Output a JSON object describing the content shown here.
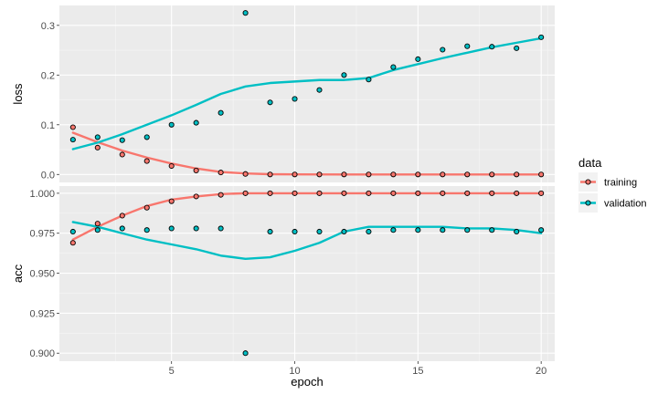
{
  "chart_data": {
    "type": "line",
    "x_label": "epoch",
    "x_ticks": [
      5,
      10,
      15,
      20
    ],
    "x_range": [
      0.45,
      20.55
    ],
    "legend": {
      "title": "data",
      "position": "right"
    },
    "series_colors": {
      "training": "#F8766D",
      "validation": "#00BFC4"
    },
    "panels": [
      {
        "name": "loss",
        "ylabel": "loss",
        "y_range": [
          -0.016,
          0.34
        ],
        "y_ticks": [
          0.0,
          0.1,
          0.2,
          0.3
        ],
        "y_tick_labels": [
          "0.0",
          "0.1",
          "0.2",
          "0.3"
        ],
        "points": {
          "training": [
            [
              1,
              0.095
            ],
            [
              2,
              0.054
            ],
            [
              3,
              0.04
            ],
            [
              4,
              0.027
            ],
            [
              5,
              0.017
            ],
            [
              6,
              0.008
            ],
            [
              7,
              0.004
            ],
            [
              8,
              0.001
            ],
            [
              9,
              0.0
            ],
            [
              10,
              0.0
            ],
            [
              11,
              0.0
            ],
            [
              12,
              0.0
            ],
            [
              13,
              0.0
            ],
            [
              14,
              0.0
            ],
            [
              15,
              0.0
            ],
            [
              16,
              0.0
            ],
            [
              17,
              0.0
            ],
            [
              18,
              0.0
            ],
            [
              19,
              0.0
            ],
            [
              20,
              0.0
            ]
          ],
          "validation": [
            [
              1,
              0.07
            ],
            [
              2,
              0.075
            ],
            [
              3,
              0.069
            ],
            [
              4,
              0.075
            ],
            [
              5,
              0.1
            ],
            [
              6,
              0.104
            ],
            [
              7,
              0.124
            ],
            [
              8,
              0.325
            ],
            [
              9,
              0.145
            ],
            [
              10,
              0.152
            ],
            [
              11,
              0.17
            ],
            [
              12,
              0.2
            ],
            [
              13,
              0.191
            ],
            [
              14,
              0.216
            ],
            [
              15,
              0.232
            ],
            [
              16,
              0.251
            ],
            [
              17,
              0.258
            ],
            [
              18,
              0.257
            ],
            [
              19,
              0.254
            ],
            [
              20,
              0.276
            ]
          ]
        },
        "smooth": {
          "training": [
            [
              1,
              0.084
            ],
            [
              2,
              0.065
            ],
            [
              3,
              0.048
            ],
            [
              4,
              0.034
            ],
            [
              5,
              0.022
            ],
            [
              6,
              0.012
            ],
            [
              7,
              0.005
            ],
            [
              8,
              0.002
            ],
            [
              9,
              0.0005
            ],
            [
              10,
              0.0001
            ],
            [
              12,
              0.0
            ],
            [
              14,
              0.0
            ],
            [
              16,
              0.0
            ],
            [
              18,
              0.0
            ],
            [
              20,
              0.0
            ]
          ],
          "validation": [
            [
              1,
              0.051
            ],
            [
              2,
              0.064
            ],
            [
              3,
              0.081
            ],
            [
              4,
              0.1
            ],
            [
              5,
              0.119
            ],
            [
              6,
              0.14
            ],
            [
              7,
              0.162
            ],
            [
              8,
              0.177
            ],
            [
              9,
              0.184
            ],
            [
              10,
              0.187
            ],
            [
              11,
              0.19
            ],
            [
              12,
              0.19
            ],
            [
              13,
              0.194
            ],
            [
              14,
              0.21
            ],
            [
              15,
              0.222
            ],
            [
              16,
              0.234
            ],
            [
              17,
              0.245
            ],
            [
              18,
              0.256
            ],
            [
              19,
              0.265
            ],
            [
              20,
              0.274
            ]
          ]
        }
      },
      {
        "name": "acc",
        "ylabel": "acc",
        "y_range": [
          0.895,
          1.0045
        ],
        "y_ticks": [
          0.9,
          0.925,
          0.95,
          0.975,
          1.0
        ],
        "y_tick_labels": [
          "0.900",
          "0.925",
          "0.950",
          "0.975",
          "1.000"
        ],
        "points": {
          "training": [
            [
              1,
              0.969
            ],
            [
              2,
              0.981
            ],
            [
              3,
              0.986
            ],
            [
              4,
              0.991
            ],
            [
              5,
              0.995
            ],
            [
              6,
              0.998
            ],
            [
              7,
              0.999
            ],
            [
              8,
              1.0
            ],
            [
              9,
              1.0
            ],
            [
              10,
              1.0
            ],
            [
              11,
              1.0
            ],
            [
              12,
              1.0
            ],
            [
              13,
              1.0
            ],
            [
              14,
              1.0
            ],
            [
              15,
              1.0
            ],
            [
              16,
              1.0
            ],
            [
              17,
              1.0
            ],
            [
              18,
              1.0
            ],
            [
              19,
              1.0
            ],
            [
              20,
              1.0
            ]
          ],
          "validation": [
            [
              1,
              0.976
            ],
            [
              2,
              0.977
            ],
            [
              3,
              0.978
            ],
            [
              4,
              0.977
            ],
            [
              5,
              0.978
            ],
            [
              6,
              0.978
            ],
            [
              7,
              0.978
            ],
            [
              8,
              0.9
            ],
            [
              9,
              0.976
            ],
            [
              10,
              0.976
            ],
            [
              11,
              0.976
            ],
            [
              12,
              0.976
            ],
            [
              13,
              0.976
            ],
            [
              14,
              0.977
            ],
            [
              15,
              0.977
            ],
            [
              16,
              0.977
            ],
            [
              17,
              0.977
            ],
            [
              18,
              0.977
            ],
            [
              19,
              0.976
            ],
            [
              20,
              0.977
            ]
          ]
        },
        "smooth": {
          "training": [
            [
              1,
              0.971
            ],
            [
              2,
              0.979
            ],
            [
              3,
              0.986
            ],
            [
              4,
              0.992
            ],
            [
              5,
              0.996
            ],
            [
              6,
              0.998
            ],
            [
              7,
              0.9995
            ],
            [
              8,
              1.0
            ],
            [
              10,
              1.0
            ],
            [
              12,
              1.0
            ],
            [
              14,
              1.0
            ],
            [
              16,
              1.0
            ],
            [
              18,
              1.0
            ],
            [
              20,
              1.0
            ]
          ],
          "validation": [
            [
              1,
              0.982
            ],
            [
              2,
              0.979
            ],
            [
              3,
              0.975
            ],
            [
              4,
              0.971
            ],
            [
              5,
              0.968
            ],
            [
              6,
              0.965
            ],
            [
              7,
              0.961
            ],
            [
              8,
              0.959
            ],
            [
              9,
              0.96
            ],
            [
              10,
              0.964
            ],
            [
              11,
              0.969
            ],
            [
              12,
              0.976
            ],
            [
              13,
              0.979
            ],
            [
              14,
              0.979
            ],
            [
              15,
              0.979
            ],
            [
              16,
              0.979
            ],
            [
              17,
              0.978
            ],
            [
              18,
              0.978
            ],
            [
              19,
              0.977
            ],
            [
              20,
              0.975
            ]
          ]
        }
      }
    ]
  }
}
